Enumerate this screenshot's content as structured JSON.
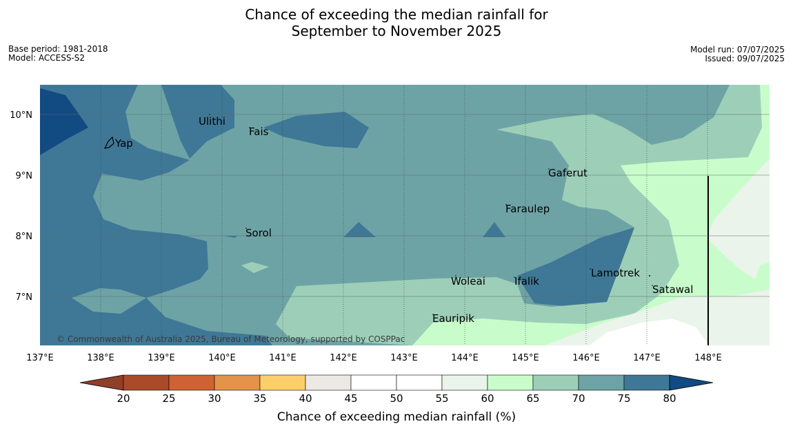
{
  "title": {
    "line1": "Chance of exceeding the median rainfall for",
    "line2": "September to November 2025"
  },
  "meta": {
    "base_period": "Base period: 1981-2018",
    "model": "Model: ACCESS-S2",
    "model_run": "Model run: 07/07/2025",
    "issued": "Issued: 09/07/2025"
  },
  "map": {
    "lon_range": [
      137,
      149
    ],
    "lat_range": [
      6.2,
      10.5
    ],
    "lon_ticks": [
      "137°E",
      "138°E",
      "139°E",
      "140°E",
      "141°E",
      "142°E",
      "143°E",
      "144°E",
      "145°E",
      "146°E",
      "147°E",
      "148°E"
    ],
    "lat_ticks": [
      "10°N",
      "9°N",
      "8°N",
      "7°N"
    ],
    "places": [
      "Ulithi",
      "Fais",
      "Yap",
      "Gaferut",
      "Faraulep",
      "Sorol",
      "Woleai",
      "Ifalik",
      "Lamotrek",
      "Satawal",
      "Eauripik"
    ],
    "credit": "© Commonwealth of Australia 2025, Bureau of Meteorology, supported by COSPPac",
    "colors": {
      "c80": "#124a82",
      "c75": "#3f7896",
      "c70": "#6ea3a6",
      "c65": "#9dcfb8",
      "c60": "#c9fccb",
      "c55": "#eaf4ea"
    }
  },
  "colorbar": {
    "ticks": [
      "20",
      "25",
      "30",
      "35",
      "40",
      "45",
      "50",
      "55",
      "60",
      "65",
      "70",
      "75",
      "80"
    ],
    "colors": [
      "#ab4a2a",
      "#ce6234",
      "#e29349",
      "#fdcf6a",
      "#ece9e5",
      "#ffffff",
      "#ffffff",
      "#eaf4ea",
      "#c9fccb",
      "#9dcfb8",
      "#6ea3a6",
      "#3f7896"
    ],
    "low_extend_color": "#903f28",
    "high_extend_color": "#124a82",
    "label": "Chance of exceeding median rainfall (%)"
  }
}
